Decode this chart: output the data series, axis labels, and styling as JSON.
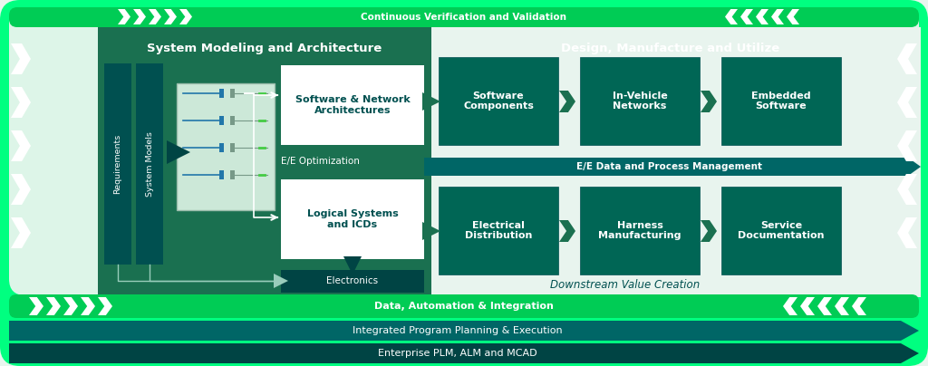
{
  "bg_outer": "#00ff80",
  "bg_inner": "#e8f5ee",
  "teal_section": "#1a7050",
  "teal_box": "#006655",
  "teal_box2": "#007766",
  "teal_dark": "#005050",
  "teal_darker": "#004444",
  "teal_ee_bar": "#006666",
  "green_bar": "#00cc55",
  "white": "#ffffff",
  "text_teal": "#005f55",
  "top_label": "Continuous Verification and Validation",
  "bar1_label": "Data, Automation & Integration",
  "bar2_label": "Integrated Program Planning & Execution",
  "bar3_label": "Enterprise PLM, ALM and MCAD",
  "section_left": "System Modeling and Architecture",
  "section_right": "Design, Manufacture and Utilize",
  "req_label": "Requirements",
  "sys_label": "System Models",
  "box_sw_net": "Software & Network\nArchitectures",
  "box_ee_opt": "E/E Optimization",
  "box_logical": "Logical Systems\nand ICDs",
  "box_electronics": "Electronics",
  "box_sw_comp": "Software\nComponents",
  "box_invehicle": "In-Vehicle\nNetworks",
  "box_embedded": "Embedded\nSoftware",
  "box_ee_data": "E/E Data and Process Management",
  "box_elec_dist": "Electrical\nDistribution",
  "box_harness": "Harness\nManufacturing",
  "box_service": "Service\nDocumentation",
  "label_downstream": "Downstream Value Creation"
}
